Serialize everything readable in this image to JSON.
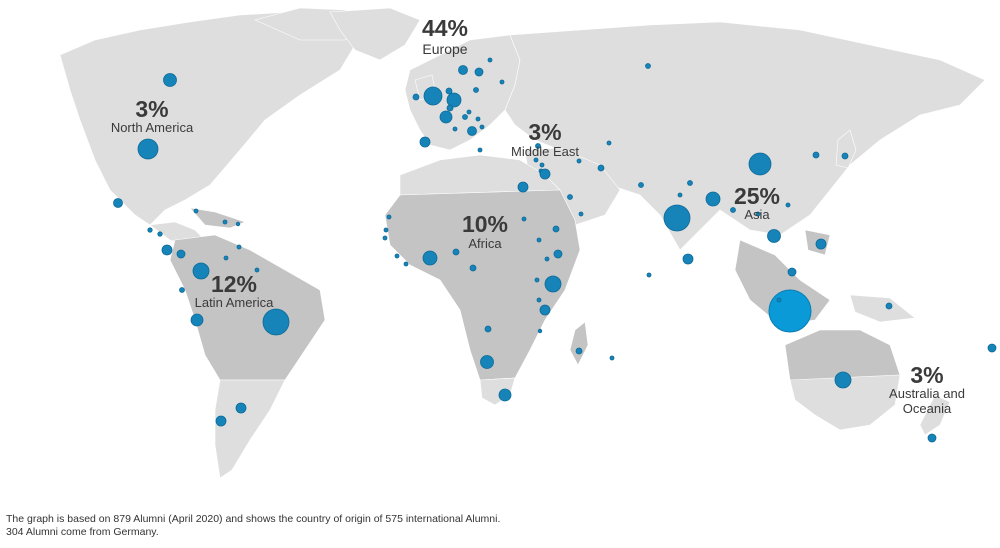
{
  "regions": [
    {
      "id": "north-america",
      "percent": "3%",
      "name": "North America"
    },
    {
      "id": "europe",
      "percent": "44%",
      "name": "Europe"
    },
    {
      "id": "middle-east",
      "percent": "3%",
      "name": "Middle East"
    },
    {
      "id": "asia",
      "percent": "25%",
      "name": "Asia"
    },
    {
      "id": "africa",
      "percent": "10%",
      "name": "Africa"
    },
    {
      "id": "latin-america",
      "percent": "12%",
      "name": "Latin America"
    },
    {
      "id": "oceania",
      "percent": "3%",
      "name_line1": "Australia and",
      "name_line2": "Oceania"
    }
  ],
  "footnote": {
    "line1": "The graph is based on 879 Alumni (April 2020) and shows the country of origin of 575 international Alumni.",
    "line2": "304 Alumni come from Germany."
  },
  "colors": {
    "land_light": "#dedede",
    "land_dark": "#c4c4c4",
    "bubble": "#1684b8",
    "bubble_highlight": "#0a9ad8",
    "text": "#3a3a3a"
  }
}
